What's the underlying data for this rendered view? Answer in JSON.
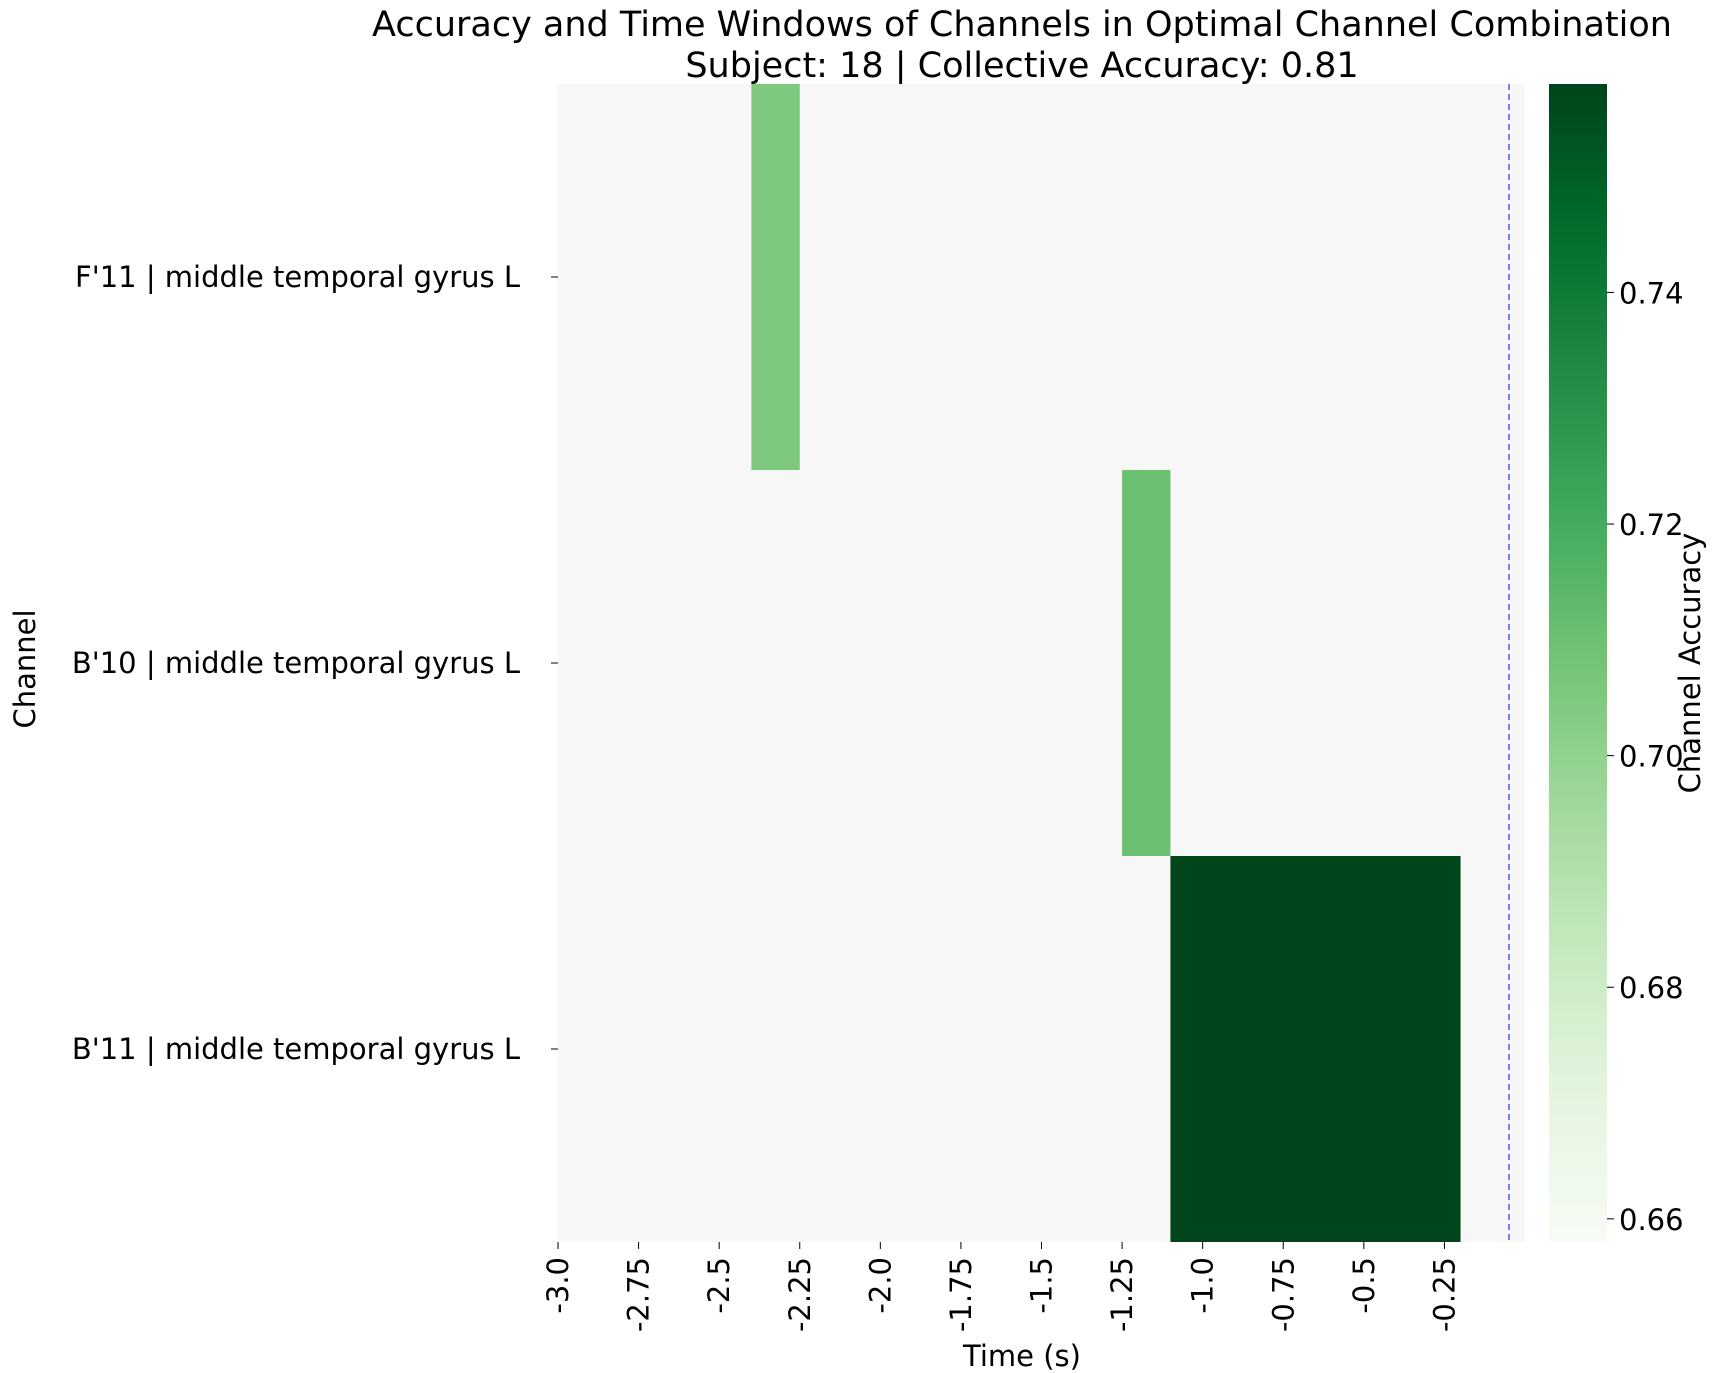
{
  "chart_data": {
    "type": "heatmap",
    "title": "Accuracy and Time Windows of Channels in Optimal Channel Combination",
    "subtitle": "Subject: 18 | Collective Accuracy: 0.81",
    "xlabel": "Time (s)",
    "ylabel": "Channel",
    "colorbar_label": "Channel Accuracy",
    "colormap": "Greens",
    "color_range": [
      0.658,
      0.758
    ],
    "background_color": "#f7f7f7",
    "x_ticks": [
      "-3.0",
      "-2.75",
      "-2.5",
      "-2.25",
      "-2.0",
      "-1.75",
      "-1.5",
      "-1.25",
      "-1.0",
      "-0.75",
      "-0.5",
      "-0.25"
    ],
    "x_range": [
      -3.0,
      0.0
    ],
    "channels": [
      "F'11 | middle temporal gyrus L",
      "B'10 | middle temporal gyrus L",
      "B'11 | middle temporal gyrus L"
    ],
    "windows": [
      {
        "channel": "F'11 | middle temporal gyrus L",
        "start": -2.4,
        "end": -2.25,
        "accuracy": 0.705
      },
      {
        "channel": "B'10 | middle temporal gyrus L",
        "start": -1.25,
        "end": -1.1,
        "accuracy": 0.71
      },
      {
        "channel": "B'11 | middle temporal gyrus L",
        "start": -1.1,
        "end": -0.2,
        "accuracy": 0.758
      }
    ],
    "reference_line": {
      "x": 0.0,
      "color": "#4b5cf0",
      "style": "dashed"
    },
    "colorbar_ticks": [
      "0.66",
      "0.68",
      "0.70",
      "0.72",
      "0.74"
    ],
    "grid": false
  }
}
